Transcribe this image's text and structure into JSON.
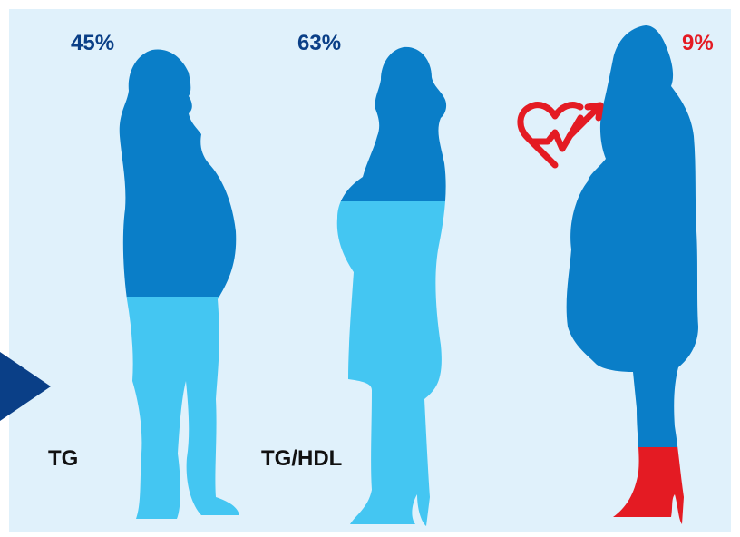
{
  "figures": [
    {
      "id": "tg",
      "percent": "45%",
      "label": "TG",
      "fill_fraction": 0.45,
      "percent_color": "#0a3f87"
    },
    {
      "id": "tg-hdl",
      "percent": "63%",
      "label": "TG/HDL",
      "fill_fraction": 0.63,
      "percent_color": "#0a3f87"
    },
    {
      "id": "risk",
      "percent": "9%",
      "label": "",
      "fill_fraction": 0.09,
      "percent_color": "#e41b23",
      "icon": "heart-check-arrow-icon"
    }
  ],
  "colors": {
    "background": "#e0f1fb",
    "dark_blue": "#0a7ec8",
    "light_blue": "#44c6f2",
    "red": "#e41b23",
    "navy": "#0a3f87"
  }
}
